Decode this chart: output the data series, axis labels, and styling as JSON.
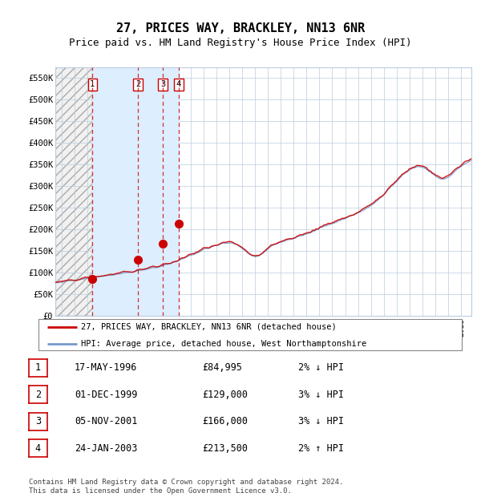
{
  "title": "27, PRICES WAY, BRACKLEY, NN13 6NR",
  "subtitle": "Price paid vs. HM Land Registry's House Price Index (HPI)",
  "title_fontsize": 11,
  "subtitle_fontsize": 9,
  "ylabel_ticks": [
    "£0",
    "£50K",
    "£100K",
    "£150K",
    "£200K",
    "£250K",
    "£300K",
    "£350K",
    "£400K",
    "£450K",
    "£500K",
    "£550K"
  ],
  "ytick_values": [
    0,
    50000,
    100000,
    150000,
    200000,
    250000,
    300000,
    350000,
    400000,
    450000,
    500000,
    550000
  ],
  "ylim": [
    0,
    575000
  ],
  "xlim_start": 1993.5,
  "xlim_end": 2025.8,
  "sale_dates": [
    1996.38,
    1999.92,
    2001.84,
    2003.07
  ],
  "sale_prices": [
    84995,
    129000,
    166000,
    213500
  ],
  "sale_labels": [
    "1",
    "2",
    "3",
    "4"
  ],
  "hpi_color": "#7799cc",
  "price_color": "#cc0000",
  "background_color": "#ffffff",
  "plot_bg_color": "#ffffff",
  "shaded_region_color": "#ddeeff",
  "grid_color": "#bbccdd",
  "footer_text": "Contains HM Land Registry data © Crown copyright and database right 2024.\nThis data is licensed under the Open Government Licence v3.0.",
  "legend_label_price": "27, PRICES WAY, BRACKLEY, NN13 6NR (detached house)",
  "legend_label_hpi": "HPI: Average price, detached house, West Northamptonshire",
  "table_rows": [
    [
      "1",
      "17-MAY-1996",
      "£84,995",
      "2% ↓ HPI"
    ],
    [
      "2",
      "01-DEC-1999",
      "£129,000",
      "3% ↓ HPI"
    ],
    [
      "3",
      "05-NOV-2001",
      "£166,000",
      "3% ↓ HPI"
    ],
    [
      "4",
      "24-JAN-2003",
      "£213,500",
      "2% ↑ HPI"
    ]
  ]
}
